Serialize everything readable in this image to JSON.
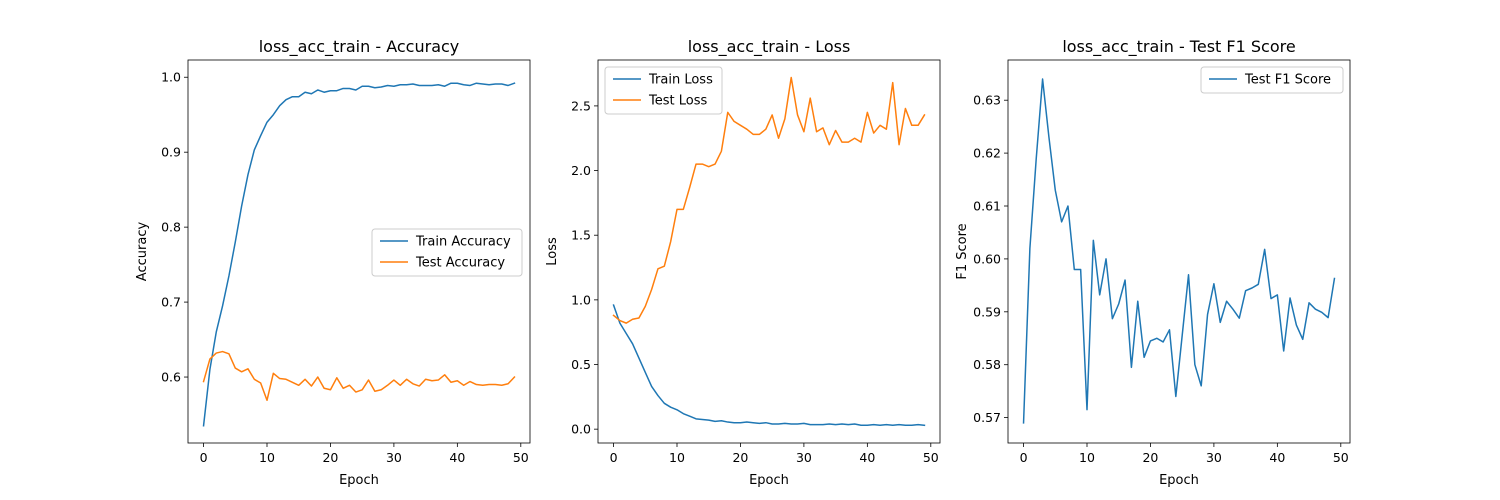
{
  "chart_data": [
    {
      "type": "line",
      "title": "loss_acc_train - Accuracy",
      "xlabel": "Epoch",
      "ylabel": "Accuracy",
      "xlim": [
        -2.45,
        51.45
      ],
      "ylim": [
        0.512,
        1.023
      ],
      "xticks": [
        0,
        10,
        20,
        30,
        40,
        50
      ],
      "yticks": [
        0.6,
        0.7,
        0.8,
        0.9,
        1.0
      ],
      "ytick_labels": [
        "0.6",
        "0.7",
        "0.8",
        "0.9",
        "1.0"
      ],
      "legend": "center-right",
      "x": [
        0,
        1,
        2,
        3,
        4,
        5,
        6,
        7,
        8,
        9,
        10,
        11,
        12,
        13,
        14,
        15,
        16,
        17,
        18,
        19,
        20,
        21,
        22,
        23,
        24,
        25,
        26,
        27,
        28,
        29,
        30,
        31,
        32,
        33,
        34,
        35,
        36,
        37,
        38,
        39,
        40,
        41,
        42,
        43,
        44,
        45,
        46,
        47,
        48,
        49
      ],
      "series": [
        {
          "name": "Train Accuracy",
          "color": "#1f77b4",
          "values": [
            0.535,
            0.61,
            0.66,
            0.695,
            0.735,
            0.78,
            0.828,
            0.87,
            0.903,
            0.922,
            0.94,
            0.95,
            0.962,
            0.97,
            0.974,
            0.974,
            0.98,
            0.978,
            0.983,
            0.98,
            0.982,
            0.982,
            0.985,
            0.985,
            0.983,
            0.988,
            0.988,
            0.986,
            0.987,
            0.989,
            0.988,
            0.99,
            0.99,
            0.991,
            0.989,
            0.989,
            0.989,
            0.99,
            0.988,
            0.992,
            0.992,
            0.99,
            0.989,
            0.992,
            0.991,
            0.99,
            0.991,
            0.991,
            0.989,
            0.992
          ]
        },
        {
          "name": "Test Accuracy",
          "color": "#ff7f0e",
          "values": [
            0.594,
            0.624,
            0.632,
            0.634,
            0.631,
            0.612,
            0.607,
            0.611,
            0.597,
            0.592,
            0.569,
            0.605,
            0.598,
            0.597,
            0.593,
            0.589,
            0.597,
            0.588,
            0.6,
            0.585,
            0.583,
            0.599,
            0.585,
            0.589,
            0.58,
            0.583,
            0.596,
            0.581,
            0.583,
            0.589,
            0.596,
            0.589,
            0.597,
            0.591,
            0.588,
            0.597,
            0.595,
            0.596,
            0.603,
            0.593,
            0.595,
            0.589,
            0.594,
            0.59,
            0.589,
            0.59,
            0.59,
            0.589,
            0.591,
            0.6
          ]
        }
      ]
    },
    {
      "type": "line",
      "title": "loss_acc_train - Loss",
      "xlabel": "Epoch",
      "ylabel": "Loss",
      "xlim": [
        -2.45,
        51.45
      ],
      "ylim": [
        -0.107,
        2.855
      ],
      "xticks": [
        0,
        10,
        20,
        30,
        40,
        50
      ],
      "yticks": [
        0.0,
        0.5,
        1.0,
        1.5,
        2.0,
        2.5
      ],
      "ytick_labels": [
        "0.0",
        "0.5",
        "1.0",
        "1.5",
        "2.0",
        "2.5"
      ],
      "legend": "top-left",
      "x": [
        0,
        1,
        2,
        3,
        4,
        5,
        6,
        7,
        8,
        9,
        10,
        11,
        12,
        13,
        14,
        15,
        16,
        17,
        18,
        19,
        20,
        21,
        22,
        23,
        24,
        25,
        26,
        27,
        28,
        29,
        30,
        31,
        32,
        33,
        34,
        35,
        36,
        37,
        38,
        39,
        40,
        41,
        42,
        43,
        44,
        45,
        46,
        47,
        48,
        49
      ],
      "series": [
        {
          "name": "Train Loss",
          "color": "#1f77b4",
          "values": [
            0.96,
            0.82,
            0.74,
            0.66,
            0.55,
            0.44,
            0.33,
            0.26,
            0.2,
            0.17,
            0.15,
            0.12,
            0.1,
            0.08,
            0.075,
            0.07,
            0.06,
            0.065,
            0.055,
            0.05,
            0.05,
            0.055,
            0.05,
            0.045,
            0.05,
            0.04,
            0.04,
            0.045,
            0.04,
            0.04,
            0.045,
            0.035,
            0.035,
            0.035,
            0.04,
            0.035,
            0.04,
            0.035,
            0.04,
            0.03,
            0.03,
            0.035,
            0.03,
            0.035,
            0.03,
            0.035,
            0.03,
            0.03,
            0.035,
            0.03
          ]
        },
        {
          "name": "Test Loss",
          "color": "#ff7f0e",
          "values": [
            0.88,
            0.84,
            0.82,
            0.85,
            0.86,
            0.95,
            1.08,
            1.24,
            1.26,
            1.45,
            1.7,
            1.7,
            1.87,
            2.05,
            2.05,
            2.03,
            2.05,
            2.15,
            2.45,
            2.38,
            2.35,
            2.32,
            2.28,
            2.28,
            2.32,
            2.43,
            2.25,
            2.4,
            2.72,
            2.43,
            2.3,
            2.56,
            2.3,
            2.33,
            2.2,
            2.31,
            2.22,
            2.22,
            2.25,
            2.22,
            2.45,
            2.29,
            2.35,
            2.32,
            2.68,
            2.2,
            2.48,
            2.35,
            2.35,
            2.43
          ]
        }
      ]
    },
    {
      "type": "line",
      "title": "loss_acc_train - Test F1 Score",
      "xlabel": "Epoch",
      "ylabel": "F1 Score",
      "xlim": [
        -2.45,
        51.45
      ],
      "ylim": [
        0.5652,
        0.6376
      ],
      "xticks": [
        0,
        10,
        20,
        30,
        40,
        50
      ],
      "yticks": [
        0.57,
        0.58,
        0.59,
        0.6,
        0.61,
        0.62,
        0.63
      ],
      "ytick_labels": [
        "0.57",
        "0.58",
        "0.59",
        "0.60",
        "0.61",
        "0.62",
        "0.63"
      ],
      "legend": "top-right",
      "x": [
        0,
        1,
        2,
        3,
        4,
        5,
        6,
        7,
        8,
        9,
        10,
        11,
        12,
        13,
        14,
        15,
        16,
        17,
        18,
        19,
        20,
        21,
        22,
        23,
        24,
        25,
        26,
        27,
        28,
        29,
        30,
        31,
        32,
        33,
        34,
        35,
        36,
        37,
        38,
        39,
        40,
        41,
        42,
        43,
        44,
        45,
        46,
        47,
        48,
        49
      ],
      "series": [
        {
          "name": "Test F1 Score",
          "color": "#1f77b4",
          "values": [
            0.569,
            0.602,
            0.619,
            0.634,
            0.623,
            0.613,
            0.607,
            0.61,
            0.598,
            0.598,
            0.5715,
            0.6035,
            0.5932,
            0.6,
            0.5887,
            0.5915,
            0.596,
            0.5795,
            0.592,
            0.5814,
            0.5845,
            0.585,
            0.5843,
            0.5866,
            0.574,
            0.5855,
            0.597,
            0.58,
            0.576,
            0.5895,
            0.5953,
            0.588,
            0.592,
            0.5905,
            0.5888,
            0.594,
            0.5945,
            0.5952,
            0.6018,
            0.5925,
            0.5932,
            0.5826,
            0.5926,
            0.5875,
            0.5848,
            0.5917,
            0.5905,
            0.5899,
            0.5889,
            0.5963
          ]
        }
      ]
    }
  ]
}
